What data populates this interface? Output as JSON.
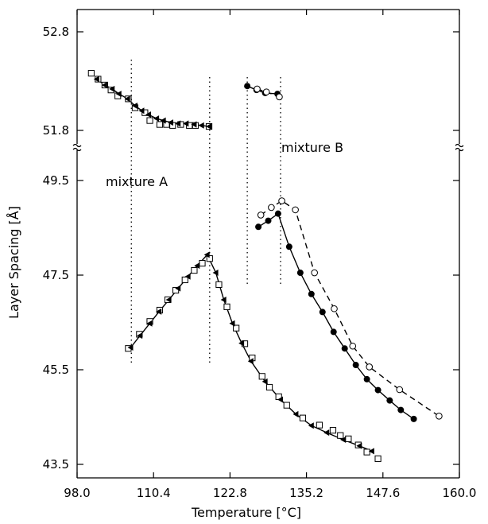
{
  "chart_data": {
    "type": "scatter",
    "xlabel": "Temperature [°C]",
    "ylabel": "Layer Spacing [Å]",
    "xlim": [
      98.0,
      160.0
    ],
    "x_ticks": [
      "98.0",
      "110.4",
      "122.8",
      "135.2",
      "147.6",
      "160.0"
    ],
    "y_ticks_upper": [
      "52.8",
      "51.8"
    ],
    "y_ticks_lower": [
      "49.5",
      "47.5",
      "45.5",
      "43.5"
    ],
    "y_break": "between 51.8 and 49.5",
    "grid": false,
    "annotations": [
      "mixture A",
      "mixture B"
    ],
    "vertical_dotted_lines_x": [
      106.8,
      119.5,
      125.6,
      131.0
    ],
    "series": [
      {
        "marker": "open-square",
        "line": "none",
        "points": [
          [
            100.3,
            52.38
          ],
          [
            101.4,
            52.32
          ],
          [
            102.5,
            52.26
          ],
          [
            103.5,
            52.21
          ],
          [
            104.6,
            52.15
          ],
          [
            106.3,
            52.12
          ],
          [
            107.4,
            52.03
          ],
          [
            109.0,
            51.98
          ],
          [
            109.8,
            51.9
          ],
          [
            111.4,
            51.86
          ],
          [
            112.5,
            51.86
          ],
          [
            113.5,
            51.85
          ],
          [
            114.8,
            51.86
          ],
          [
            116.2,
            51.85
          ],
          [
            117.2,
            51.85
          ],
          [
            119.4,
            51.84
          ],
          [
            106.3,
            45.95
          ],
          [
            108.1,
            46.25
          ],
          [
            109.8,
            46.52
          ],
          [
            111.4,
            46.76
          ],
          [
            112.7,
            46.98
          ],
          [
            114.0,
            47.18
          ],
          [
            115.5,
            47.4
          ],
          [
            117.0,
            47.6
          ],
          [
            118.3,
            47.75
          ],
          [
            119.5,
            47.85
          ],
          [
            121.0,
            47.3
          ],
          [
            122.3,
            46.83
          ],
          [
            123.8,
            46.38
          ],
          [
            125.2,
            46.05
          ],
          [
            126.4,
            45.75
          ],
          [
            128.0,
            45.36
          ],
          [
            129.2,
            45.13
          ],
          [
            130.7,
            44.93
          ],
          [
            132.0,
            44.75
          ],
          [
            134.6,
            44.48
          ],
          [
            137.3,
            44.33
          ],
          [
            139.5,
            44.22
          ],
          [
            140.7,
            44.11
          ],
          [
            142.0,
            44.04
          ],
          [
            143.6,
            43.91
          ],
          [
            145.0,
            43.76
          ],
          [
            146.8,
            43.62
          ]
        ]
      },
      {
        "marker": "filled-triangle",
        "line": "solid",
        "points": [
          [
            101.2,
            52.32
          ],
          [
            102.5,
            52.26
          ],
          [
            103.7,
            52.22
          ],
          [
            104.8,
            52.17
          ],
          [
            106.2,
            52.12
          ],
          [
            107.4,
            52.05
          ],
          [
            108.5,
            52.0
          ],
          [
            109.6,
            51.96
          ],
          [
            110.9,
            51.92
          ],
          [
            112.0,
            51.9
          ],
          [
            113.2,
            51.88
          ],
          [
            114.4,
            51.87
          ],
          [
            115.7,
            51.87
          ],
          [
            117.0,
            51.86
          ],
          [
            118.2,
            51.85
          ],
          [
            119.4,
            51.84
          ],
          [
            106.7,
            45.97
          ],
          [
            108.2,
            46.22
          ],
          [
            109.8,
            46.48
          ],
          [
            111.3,
            46.73
          ],
          [
            112.9,
            46.98
          ],
          [
            114.4,
            47.22
          ],
          [
            116.0,
            47.47
          ],
          [
            117.5,
            47.7
          ],
          [
            119.1,
            47.93
          ],
          [
            120.5,
            47.55
          ],
          [
            121.8,
            46.98
          ],
          [
            123.2,
            46.48
          ],
          [
            124.7,
            46.06
          ],
          [
            126.2,
            45.68
          ],
          [
            128.5,
            45.25
          ],
          [
            131.0,
            44.87
          ],
          [
            133.5,
            44.56
          ],
          [
            136.0,
            44.32
          ],
          [
            138.5,
            44.17
          ],
          [
            141.2,
            44.02
          ],
          [
            143.8,
            43.89
          ],
          [
            145.8,
            43.78
          ]
        ]
      },
      {
        "marker": "filled-circle",
        "line": "solid",
        "points": [
          [
            125.6,
            52.25
          ],
          [
            127.1,
            52.21
          ],
          [
            128.5,
            52.18
          ],
          [
            130.5,
            52.17
          ],
          [
            127.4,
            48.52
          ],
          [
            129.0,
            48.65
          ],
          [
            130.6,
            48.8
          ],
          [
            132.4,
            48.1
          ],
          [
            134.2,
            47.55
          ],
          [
            136.0,
            47.1
          ],
          [
            137.8,
            46.72
          ],
          [
            139.6,
            46.3
          ],
          [
            141.4,
            45.95
          ],
          [
            143.2,
            45.6
          ],
          [
            145.0,
            45.3
          ],
          [
            146.8,
            45.07
          ],
          [
            148.7,
            44.85
          ],
          [
            150.5,
            44.65
          ],
          [
            152.6,
            44.46
          ]
        ]
      },
      {
        "marker": "open-circle",
        "line": "dashed",
        "points": [
          [
            127.2,
            52.22
          ],
          [
            128.7,
            52.19
          ],
          [
            130.8,
            52.14
          ],
          [
            127.8,
            48.77
          ],
          [
            129.5,
            48.93
          ],
          [
            131.2,
            49.07
          ],
          [
            133.4,
            48.88
          ],
          [
            136.5,
            47.55
          ],
          [
            139.7,
            46.79
          ],
          [
            142.7,
            46.0
          ],
          [
            145.4,
            45.56
          ],
          [
            150.3,
            45.08
          ],
          [
            156.7,
            44.52
          ]
        ]
      }
    ]
  }
}
